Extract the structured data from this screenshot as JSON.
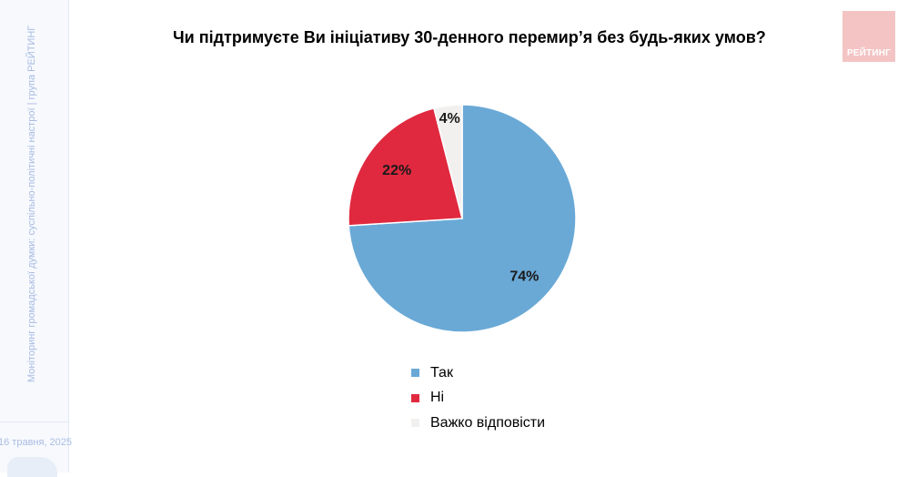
{
  "sidebar": {
    "vertical_text": "Моніторинг громадської думки: суспільно-політичні настрої | група РЕЙТИНГ",
    "date": "16 травня, 2025"
  },
  "logo": {
    "text": "РЕЙТИНГ",
    "color": "#f4c4c4"
  },
  "chart_data": {
    "type": "pie",
    "title": "Чи підтримуєте Ви ініціативу 30-денного перемир’я без будь-яких умов?",
    "categories": [
      "Так",
      "Ні",
      "Важко відповісти"
    ],
    "values": [
      74,
      22,
      4
    ],
    "labels": [
      "74%",
      "22%",
      "4%"
    ],
    "colors": [
      "#6aa9d6",
      "#e0293f",
      "#f1f0ef"
    ],
    "legend_position": "bottom"
  }
}
